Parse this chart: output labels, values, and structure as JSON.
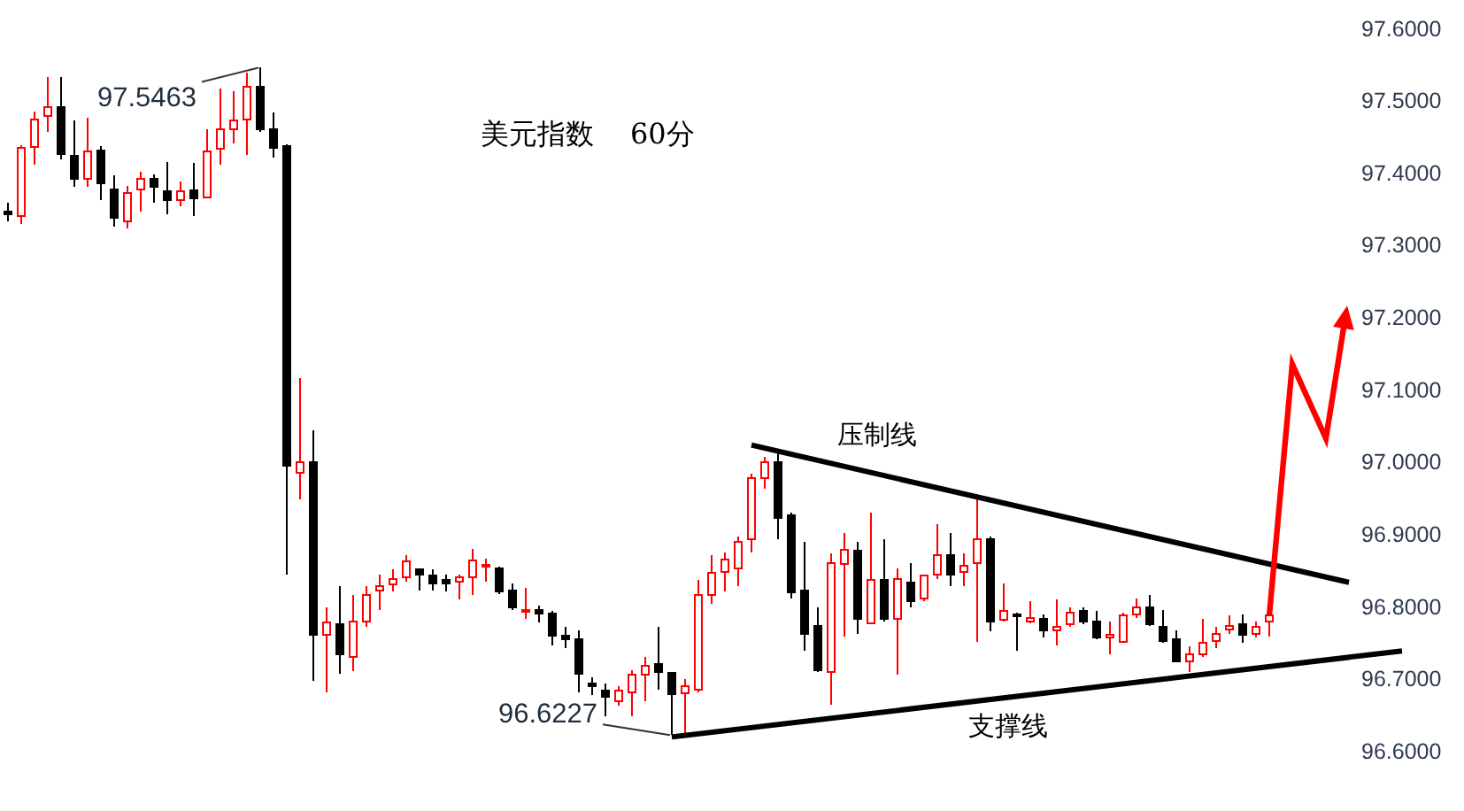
{
  "chart_data": {
    "type": "candlestick",
    "title": "美元指数    60分",
    "categories": [
      null,
      null,
      null,
      null,
      null,
      null,
      null,
      null,
      null,
      null,
      null,
      null,
      null,
      null,
      null,
      null,
      null,
      null,
      null,
      null,
      null,
      null,
      null,
      null,
      null,
      null,
      null,
      null,
      null,
      null,
      null,
      null,
      null,
      null,
      null,
      null,
      null,
      null,
      null,
      null,
      null,
      null,
      null,
      null,
      null,
      null,
      null,
      null,
      null,
      null,
      null,
      null,
      null,
      null,
      null,
      null,
      null,
      null,
      null,
      null,
      null,
      null,
      null,
      null,
      null,
      null,
      null,
      null,
      null,
      null,
      null,
      null,
      null,
      null,
      null,
      null,
      null,
      null,
      null,
      null,
      null,
      null,
      null,
      null,
      null,
      null,
      null,
      null,
      null,
      null,
      null,
      null,
      null,
      null,
      null,
      null,
      null,
      null,
      null,
      null,
      null,
      null,
      null,
      null,
      null,
      null
    ],
    "ohlc": [
      [
        97.347,
        97.359,
        97.334,
        97.343
      ],
      [
        97.341,
        97.439,
        97.33,
        97.435
      ],
      [
        97.436,
        97.485,
        97.412,
        97.475
      ],
      [
        97.479,
        97.534,
        97.457,
        97.492
      ],
      [
        97.492,
        97.533,
        97.42,
        97.427
      ],
      [
        97.424,
        97.473,
        97.381,
        97.393
      ],
      [
        97.393,
        97.477,
        97.381,
        97.43
      ],
      [
        97.432,
        97.438,
        97.363,
        97.386
      ],
      [
        97.378,
        97.397,
        97.326,
        97.339
      ],
      [
        97.334,
        97.383,
        97.324,
        97.373
      ],
      [
        97.378,
        97.402,
        97.347,
        97.392
      ],
      [
        97.392,
        97.398,
        97.359,
        97.381
      ],
      [
        97.375,
        97.416,
        97.343,
        97.363
      ],
      [
        97.363,
        97.389,
        97.354,
        97.375
      ],
      [
        97.377,
        97.414,
        97.341,
        97.366
      ],
      [
        97.367,
        97.461,
        97.365,
        97.431
      ],
      [
        97.434,
        97.517,
        97.412,
        97.461
      ],
      [
        97.461,
        97.514,
        97.441,
        97.473
      ],
      [
        97.475,
        97.539,
        97.425,
        97.52
      ],
      [
        97.52,
        97.5463,
        97.457,
        97.461
      ],
      [
        97.461,
        97.484,
        97.422,
        97.435
      ],
      [
        97.438,
        97.44,
        96.845,
        96.996
      ],
      [
        96.986,
        97.117,
        96.949,
        97.0
      ],
      [
        97.0,
        97.044,
        96.698,
        96.762
      ],
      [
        96.762,
        96.8,
        96.682,
        96.778
      ],
      [
        96.776,
        96.829,
        96.707,
        96.735
      ],
      [
        96.731,
        96.817,
        96.711,
        96.78
      ],
      [
        96.78,
        96.829,
        96.772,
        96.817
      ],
      [
        96.823,
        96.845,
        96.796,
        96.829
      ],
      [
        96.831,
        96.852,
        96.821,
        96.839
      ],
      [
        96.841,
        96.872,
        96.835,
        96.863
      ],
      [
        96.852,
        96.853,
        96.823,
        96.845
      ],
      [
        96.844,
        96.852,
        96.823,
        96.833
      ],
      [
        96.837,
        96.845,
        96.821,
        96.833
      ],
      [
        96.835,
        96.845,
        96.81,
        96.841
      ],
      [
        96.841,
        96.88,
        96.817,
        96.864
      ],
      [
        96.856,
        96.867,
        96.835,
        96.858
      ],
      [
        96.853,
        96.856,
        96.818,
        96.821
      ],
      [
        96.823,
        96.833,
        96.796,
        96.799
      ],
      [
        96.794,
        96.826,
        96.784,
        96.796
      ],
      [
        96.796,
        96.802,
        96.778,
        96.791
      ],
      [
        96.791,
        96.794,
        96.747,
        96.76
      ],
      [
        96.76,
        96.772,
        96.743,
        96.755
      ],
      [
        96.755,
        96.768,
        96.682,
        96.707
      ],
      [
        96.694,
        96.702,
        96.678,
        96.69
      ],
      [
        96.684,
        96.694,
        96.649,
        96.676
      ],
      [
        96.67,
        96.69,
        96.663,
        96.684
      ],
      [
        96.682,
        96.712,
        96.649,
        96.706
      ],
      [
        96.706,
        96.731,
        96.67,
        96.718
      ],
      [
        96.721,
        96.772,
        96.686,
        96.71
      ],
      [
        96.709,
        96.71,
        96.6227,
        96.679
      ],
      [
        96.68,
        96.7,
        96.625,
        96.69
      ],
      [
        96.686,
        96.837,
        96.682,
        96.816
      ],
      [
        96.816,
        96.872,
        96.804,
        96.847
      ],
      [
        96.849,
        96.875,
        96.821,
        96.865
      ],
      [
        96.853,
        96.898,
        96.829,
        96.89
      ],
      [
        96.894,
        96.984,
        96.875,
        96.978
      ],
      [
        96.978,
        97.008,
        96.963,
        97.0
      ],
      [
        97.0,
        97.014,
        96.894,
        96.923
      ],
      [
        96.927,
        96.931,
        96.812,
        96.82
      ],
      [
        96.823,
        96.89,
        96.739,
        96.763
      ],
      [
        96.774,
        96.8,
        96.71,
        96.712
      ],
      [
        96.71,
        96.874,
        96.665,
        96.861
      ],
      [
        96.859,
        96.902,
        96.759,
        96.879
      ],
      [
        96.878,
        96.89,
        96.763,
        96.784
      ],
      [
        96.777,
        96.931,
        96.776,
        96.837
      ],
      [
        96.837,
        96.894,
        96.78,
        96.784
      ],
      [
        96.784,
        96.853,
        96.706,
        96.839
      ],
      [
        96.834,
        96.861,
        96.8,
        96.808
      ],
      [
        96.812,
        96.845,
        96.808,
        96.843
      ],
      [
        96.845,
        96.914,
        96.839,
        96.872
      ],
      [
        96.872,
        96.902,
        96.829,
        96.845
      ],
      [
        96.849,
        96.874,
        96.829,
        96.857
      ],
      [
        96.861,
        96.951,
        96.751,
        96.894
      ],
      [
        96.894,
        96.898,
        96.766,
        96.78
      ],
      [
        96.782,
        96.833,
        96.78,
        96.794
      ],
      [
        96.79,
        96.792,
        96.739,
        96.788
      ],
      [
        96.78,
        96.808,
        96.777,
        96.785
      ],
      [
        96.784,
        96.79,
        96.758,
        96.767
      ],
      [
        96.767,
        96.81,
        96.747,
        96.772
      ],
      [
        96.776,
        96.799,
        96.772,
        96.792
      ],
      [
        96.794,
        96.799,
        96.776,
        96.78
      ],
      [
        96.78,
        96.794,
        96.755,
        96.758
      ],
      [
        96.758,
        96.78,
        96.735,
        96.761
      ],
      [
        96.751,
        96.792,
        96.75,
        96.788
      ],
      [
        96.79,
        96.812,
        96.785,
        96.8
      ],
      [
        96.799,
        96.816,
        96.774,
        96.776
      ],
      [
        96.772,
        96.796,
        96.75,
        96.753
      ],
      [
        96.755,
        96.767,
        96.723,
        96.725
      ],
      [
        96.725,
        96.745,
        96.71,
        96.735
      ],
      [
        96.735,
        96.784,
        96.731,
        96.75
      ],
      [
        96.753,
        96.772,
        96.743,
        96.763
      ],
      [
        96.769,
        96.788,
        96.763,
        96.774
      ],
      [
        96.776,
        96.79,
        96.75,
        96.761
      ],
      [
        96.763,
        96.78,
        96.758,
        96.772
      ],
      [
        96.78,
        96.792,
        96.759,
        96.788
      ],
      null,
      null,
      null,
      null,
      null,
      null,
      null,
      null,
      null,
      null
    ],
    "colors": [
      "#000000",
      "#ff0000",
      "#ff0000",
      "#ff0000",
      "#000000",
      "#000000",
      "#ff0000",
      "#000000",
      "#000000",
      "#ff0000",
      "#ff0000",
      "#000000",
      "#000000",
      "#ff0000",
      "#000000",
      "#ff0000",
      "#ff0000",
      "#ff0000",
      "#ff0000",
      "#000000",
      "#000000",
      "#000000",
      "#ff0000",
      "#000000",
      "#ff0000",
      "#000000",
      "#ff0000",
      "#ff0000",
      "#ff0000",
      "#ff0000",
      "#ff0000",
      "#000000",
      "#000000",
      "#000000",
      "#ff0000",
      "#ff0000",
      "#ff0000",
      "#000000",
      "#000000",
      "#ff0000",
      "#000000",
      "#000000",
      "#000000",
      "#000000",
      "#000000",
      "#000000",
      "#ff0000",
      "#ff0000",
      "#ff0000",
      "#000000",
      "#000000",
      "#ff0000",
      "#ff0000",
      "#ff0000",
      "#ff0000",
      "#ff0000",
      "#ff0000",
      "#ff0000",
      "#000000",
      "#000000",
      "#000000",
      "#000000",
      "#ff0000",
      "#ff0000",
      "#000000",
      "#ff0000",
      "#000000",
      "#ff0000",
      "#000000",
      "#ff0000",
      "#ff0000",
      "#000000",
      "#ff0000",
      "#ff0000",
      "#000000",
      "#ff0000",
      "#000000",
      "#ff0000",
      "#000000",
      "#ff0000",
      "#ff0000",
      "#000000",
      "#000000",
      "#ff0000",
      "#ff0000",
      "#ff0000",
      "#000000",
      "#000000",
      "#000000",
      "#ff0000",
      "#ff0000",
      "#ff0000",
      "#ff0000",
      "#000000",
      "#ff0000",
      "#ff0000",
      null,
      null,
      null,
      null,
      null,
      null,
      null,
      null,
      null,
      null
    ],
    "series": [
      {
        "name": "压制线",
        "type": "line",
        "color": "#000000",
        "values": [
          null,
          null,
          null,
          null,
          null,
          null,
          null,
          null,
          null,
          null,
          null,
          null,
          null,
          null,
          null,
          null,
          null,
          null,
          null,
          null,
          null,
          null,
          null,
          null,
          null,
          null,
          null,
          null,
          null,
          null,
          null,
          null,
          null,
          null,
          null,
          null,
          null,
          null,
          null,
          null,
          null,
          null,
          null,
          null,
          null,
          null,
          null,
          null,
          null,
          null,
          null,
          null,
          null,
          null,
          null,
          null,
          97.024,
          null,
          null,
          null,
          null,
          null,
          null,
          null,
          null,
          null,
          null,
          null,
          null,
          null,
          null,
          null,
          null,
          null,
          null,
          null,
          null,
          null,
          null,
          null,
          null,
          null,
          null,
          null,
          null,
          null,
          null,
          null,
          null,
          null,
          null,
          null,
          null,
          null,
          null,
          null,
          null,
          null,
          null,
          null,
          null,
          96.834,
          null,
          null,
          null,
          null
        ]
      },
      {
        "name": "支撑线",
        "type": "line",
        "color": "#000000",
        "values": [
          null,
          null,
          null,
          null,
          null,
          null,
          null,
          null,
          null,
          null,
          null,
          null,
          null,
          null,
          null,
          null,
          null,
          null,
          null,
          null,
          null,
          null,
          null,
          null,
          null,
          null,
          null,
          null,
          null,
          null,
          null,
          null,
          null,
          null,
          null,
          null,
          null,
          null,
          null,
          null,
          null,
          null,
          null,
          null,
          null,
          null,
          null,
          null,
          null,
          null,
          96.62,
          null,
          null,
          null,
          null,
          null,
          null,
          null,
          null,
          null,
          null,
          null,
          null,
          null,
          null,
          null,
          null,
          null,
          null,
          null,
          null,
          null,
          null,
          null,
          null,
          null,
          null,
          null,
          null,
          null,
          null,
          null,
          null,
          null,
          null,
          null,
          null,
          null,
          null,
          null,
          null,
          null,
          null,
          null,
          null,
          null,
          null,
          null,
          null,
          null,
          null,
          null,
          null,
          null,
          null,
          96.739
        ]
      }
    ],
    "annotations": [
      "97.5463",
      "96.6227"
    ],
    "ylim": [
      96.52,
      97.64
    ],
    "yticks": [
      {
        "value": 96.6,
        "label": "96.6000"
      },
      {
        "value": 96.7,
        "label": "96.7000"
      },
      {
        "value": 96.8,
        "label": "96.8000"
      },
      {
        "value": 96.9,
        "label": "96.9000"
      },
      {
        "value": 97.0,
        "label": "97.0000"
      },
      {
        "value": 97.1,
        "label": "97.1000"
      },
      {
        "value": 97.2,
        "label": "97.2000"
      },
      {
        "value": 97.3,
        "label": "97.3000"
      },
      {
        "value": 97.4,
        "label": "97.4000"
      },
      {
        "value": 97.5,
        "label": "97.5000"
      },
      {
        "value": 97.6,
        "label": "97.6000"
      }
    ],
    "tick_labels": "y"
  }
}
